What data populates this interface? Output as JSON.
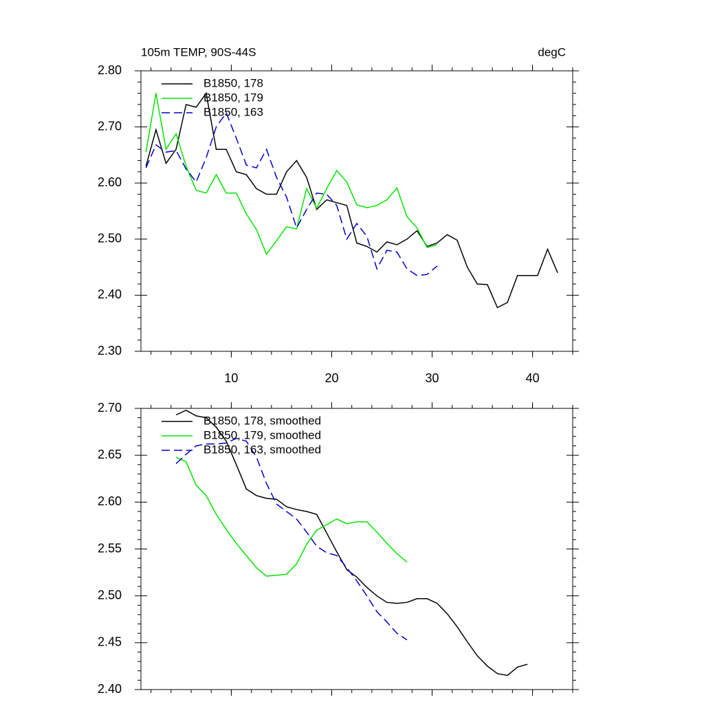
{
  "chart_data": [
    {
      "type": "line",
      "title": "105m TEMP, 90S-44S",
      "units": "degC",
      "xlim": [
        1,
        44
      ],
      "xticks": [
        10,
        20,
        30,
        40
      ],
      "xtick_labels": true,
      "ylim": [
        2.3,
        2.8
      ],
      "yticks": [
        {
          "value": 2.3,
          "label": "2.30"
        },
        {
          "value": 2.4,
          "label": "2.40"
        },
        {
          "value": 2.5,
          "label": "2.50"
        },
        {
          "value": 2.6,
          "label": "2.60"
        },
        {
          "value": 2.7,
          "label": "2.70"
        },
        {
          "value": 2.8,
          "label": "2.80"
        }
      ],
      "series": [
        {
          "name": "B1850, 178",
          "color": "#000000",
          "line_style": "solid",
          "x": [
            1.5,
            2.5,
            3.5,
            4.5,
            5.5,
            6.5,
            7.5,
            8.5,
            9.5,
            10.5,
            11.5,
            12.5,
            13.5,
            14.5,
            15.5,
            16.5,
            17.5,
            18.5,
            19.5,
            20.5,
            21.5,
            22.5,
            23.5,
            24.5,
            25.5,
            26.5,
            27.5,
            28.5,
            29.5,
            30.5,
            31.5,
            32.5,
            33.5,
            34.5,
            35.5,
            36.5,
            37.5,
            38.5,
            39.5,
            40.5,
            41.5,
            42.5
          ],
          "values": [
            2.63,
            2.695,
            2.635,
            2.66,
            2.74,
            2.735,
            2.76,
            2.66,
            2.66,
            2.62,
            2.615,
            2.59,
            2.58,
            2.58,
            2.62,
            2.64,
            2.61,
            2.553,
            2.57,
            2.565,
            2.56,
            2.493,
            2.487,
            2.477,
            2.495,
            2.49,
            2.5,
            2.515,
            2.487,
            2.493,
            2.508,
            2.498,
            2.45,
            2.42,
            2.419,
            2.378,
            2.387,
            2.435,
            2.435,
            2.435,
            2.482,
            2.44
          ]
        },
        {
          "name": "B1850, 179",
          "color": "#00e600",
          "line_style": "solid",
          "x": [
            1.5,
            2.5,
            3.5,
            4.5,
            5.5,
            6.5,
            7.5,
            8.5,
            9.5,
            10.5,
            11.5,
            12.5,
            13.5,
            14.5,
            15.5,
            16.5,
            17.5,
            18.5,
            19.5,
            20.5,
            21.5,
            22.5,
            23.5,
            24.5,
            25.5,
            26.5,
            27.5,
            28.5,
            29.5,
            30.5
          ],
          "values": [
            2.655,
            2.76,
            2.66,
            2.688,
            2.63,
            2.587,
            2.582,
            2.615,
            2.582,
            2.582,
            2.545,
            2.517,
            2.473,
            2.497,
            2.522,
            2.518,
            2.59,
            2.555,
            2.59,
            2.622,
            2.602,
            2.561,
            2.556,
            2.56,
            2.57,
            2.591,
            2.54,
            2.52,
            2.485,
            2.49
          ]
        },
        {
          "name": "B1850, 163",
          "color": "#0000cc",
          "line_style": "dashed",
          "x": [
            1.5,
            2.5,
            3.5,
            4.5,
            5.5,
            6.5,
            7.5,
            8.5,
            9.5,
            10.5,
            11.5,
            12.5,
            13.5,
            14.5,
            15.5,
            16.5,
            17.5,
            18.5,
            19.5,
            20.5,
            21.5,
            22.5,
            23.5,
            24.5,
            25.5,
            26.5,
            27.5,
            28.5,
            29.5,
            30.5
          ],
          "values": [
            2.627,
            2.668,
            2.655,
            2.658,
            2.625,
            2.602,
            2.645,
            2.7,
            2.725,
            2.68,
            2.632,
            2.627,
            2.66,
            2.61,
            2.575,
            2.52,
            2.553,
            2.582,
            2.58,
            2.56,
            2.5,
            2.528,
            2.505,
            2.447,
            2.48,
            2.477,
            2.447,
            2.435,
            2.437,
            2.452
          ]
        }
      ]
    },
    {
      "type": "line",
      "xlim": [
        1,
        44
      ],
      "xticks": [
        10,
        20,
        30,
        40
      ],
      "xtick_labels": false,
      "ylim": [
        2.4,
        2.7
      ],
      "yticks": [
        {
          "value": 2.4,
          "label": "2.40"
        },
        2.45,
        {
          "value": 2.5,
          "label": "2.50"
        },
        2.55,
        {
          "value": 2.6,
          "label": "2.60"
        },
        2.65,
        {
          "value": 2.7,
          "label": "2.70"
        }
      ],
      "series": [
        {
          "name": "B1850, 178, smoothed",
          "color": "#000000",
          "line_style": "solid",
          "x": [
            4.5,
            5.5,
            6.5,
            7.5,
            8.5,
            9.5,
            10.5,
            11.5,
            12.5,
            13.5,
            14.5,
            15.5,
            16.5,
            17.5,
            18.5,
            19.5,
            20.5,
            21.5,
            22.5,
            23.5,
            24.5,
            25.5,
            26.5,
            27.5,
            28.5,
            29.5,
            30.5,
            31.5,
            32.5,
            33.5,
            34.5,
            35.5,
            36.5,
            37.5,
            38.5,
            39.5
          ],
          "values": [
            2.693,
            2.698,
            2.692,
            2.69,
            2.68,
            2.665,
            2.64,
            2.614,
            2.607,
            2.604,
            2.603,
            2.595,
            2.592,
            2.59,
            2.587,
            2.567,
            2.547,
            2.528,
            2.52,
            2.509,
            2.5,
            2.493,
            2.492,
            2.493,
            2.497,
            2.497,
            2.492,
            2.481,
            2.467,
            2.451,
            2.436,
            2.425,
            2.417,
            2.415,
            2.424,
            2.427
          ]
        },
        {
          "name": "B1850, 179, smoothed",
          "color": "#00e600",
          "line_style": "solid",
          "x": [
            4.5,
            5.5,
            6.5,
            7.5,
            8.5,
            9.5,
            10.5,
            11.5,
            12.5,
            13.5,
            14.5,
            15.5,
            16.5,
            17.5,
            18.5,
            19.5,
            20.5,
            21.5,
            22.5,
            23.5,
            24.5,
            25.5,
            26.5,
            27.5
          ],
          "values": [
            2.648,
            2.643,
            2.618,
            2.607,
            2.587,
            2.571,
            2.556,
            2.543,
            2.53,
            2.521,
            2.522,
            2.523,
            2.534,
            2.555,
            2.57,
            2.576,
            2.582,
            2.577,
            2.579,
            2.579,
            2.568,
            2.556,
            2.545,
            2.536
          ]
        },
        {
          "name": "B1850, 163, smoothed",
          "color": "#0000cc",
          "line_style": "dashed",
          "x": [
            4.5,
            5.5,
            6.5,
            7.5,
            8.5,
            9.5,
            10.5,
            11.5,
            12.5,
            13.5,
            14.5,
            15.5,
            16.5,
            17.5,
            18.5,
            19.5,
            20.5,
            21.5,
            22.5,
            23.5,
            24.5,
            25.5,
            26.5,
            27.5
          ],
          "values": [
            2.641,
            2.651,
            2.66,
            2.662,
            2.662,
            2.663,
            2.668,
            2.665,
            2.648,
            2.62,
            2.598,
            2.59,
            2.582,
            2.568,
            2.553,
            2.546,
            2.543,
            2.53,
            2.516,
            2.5,
            2.483,
            2.472,
            2.46,
            2.453
          ]
        }
      ]
    }
  ]
}
